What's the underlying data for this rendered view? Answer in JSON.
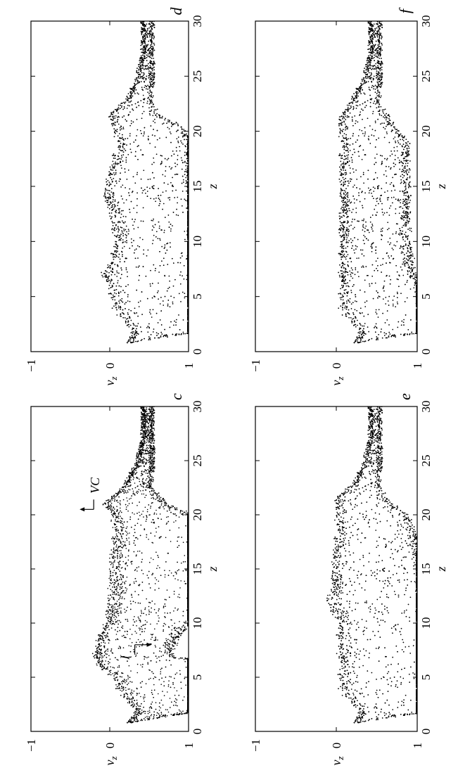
{
  "chart_data": [
    {
      "type": "scatter",
      "panel_label": "c",
      "xlabel": "z",
      "ylabel": "v_z",
      "xlim": [
        0,
        30
      ],
      "ylim": [
        -1,
        1
      ],
      "x_ticks": [
        "0",
        "5",
        "10",
        "15",
        "20",
        "25",
        "30"
      ],
      "y_ticks": [
        "−1",
        "0",
        "1"
      ],
      "profile": [
        [
          0.8,
          0.25,
          0.0
        ],
        [
          2,
          0.8,
          0.45
        ],
        [
          3.5,
          0.92,
          0.8
        ],
        [
          5,
          0.87,
          0.82
        ],
        [
          6,
          0.65,
          0.8
        ],
        [
          7,
          0.3,
          0.5
        ],
        [
          8.5,
          0.35,
          0.5
        ],
        [
          10,
          0.5,
          0.55
        ],
        [
          12,
          0.82,
          0.82
        ],
        [
          14,
          0.92,
          0.92
        ],
        [
          16,
          0.92,
          0.9
        ],
        [
          18,
          0.85,
          0.8
        ],
        [
          20,
          0.55,
          0.52
        ],
        [
          21,
          0.32,
          0.4
        ],
        [
          22.5,
          0.35,
          0.18
        ],
        [
          25,
          0.45,
          0.1
        ],
        [
          27,
          0.48,
          0.06
        ],
        [
          30,
          0.48,
          0.06
        ]
      ],
      "annotations": [
        {
          "text": "I",
          "z": 8.0,
          "v": 0.55
        },
        {
          "text": "VC",
          "z": 20.5,
          "v": -0.4
        }
      ]
    },
    {
      "type": "scatter",
      "panel_label": "d",
      "xlabel": "z",
      "ylabel": "v_z",
      "xlim": [
        0,
        30
      ],
      "ylim": [
        -1,
        1
      ],
      "x_ticks": [
        "0",
        "5",
        "10",
        "15",
        "20",
        "25",
        "30"
      ],
      "y_ticks": [
        "−1",
        "0",
        "1"
      ],
      "profile": [
        [
          0.8,
          0.25,
          0.0
        ],
        [
          2,
          0.8,
          0.5
        ],
        [
          3.5,
          0.92,
          0.85
        ],
        [
          5.5,
          0.85,
          0.85
        ],
        [
          7,
          0.55,
          0.65
        ],
        [
          8.5,
          0.68,
          0.65
        ],
        [
          10.5,
          0.86,
          0.8
        ],
        [
          12.5,
          0.82,
          0.8
        ],
        [
          13.5,
          0.55,
          0.62
        ],
        [
          15,
          0.5,
          0.55
        ],
        [
          17,
          0.55,
          0.52
        ],
        [
          19,
          0.58,
          0.48
        ],
        [
          20.5,
          0.48,
          0.45
        ],
        [
          21.5,
          0.3,
          0.3
        ],
        [
          23,
          0.38,
          0.15
        ],
        [
          25,
          0.45,
          0.1
        ],
        [
          27,
          0.48,
          0.06
        ],
        [
          30,
          0.48,
          0.06
        ]
      ]
    },
    {
      "type": "scatter",
      "panel_label": "e",
      "xlabel": "z",
      "ylabel": "v_z",
      "xlim": [
        0,
        30
      ],
      "ylim": [
        -1,
        1
      ],
      "x_ticks": [
        "0",
        "5",
        "10",
        "15",
        "20",
        "25",
        "30"
      ],
      "y_ticks": [
        "−1",
        "0",
        "1"
      ],
      "profile": [
        [
          0.8,
          0.25,
          0.0
        ],
        [
          2,
          0.8,
          0.5
        ],
        [
          3.5,
          0.9,
          0.85
        ],
        [
          6,
          0.87,
          0.83
        ],
        [
          8,
          0.82,
          0.8
        ],
        [
          10,
          0.8,
          0.78
        ],
        [
          12,
          0.62,
          0.72
        ],
        [
          14,
          0.55,
          0.6
        ],
        [
          16,
          0.52,
          0.55
        ],
        [
          18,
          0.5,
          0.5
        ],
        [
          20,
          0.45,
          0.45
        ],
        [
          21.5,
          0.3,
          0.3
        ],
        [
          23,
          0.38,
          0.15
        ],
        [
          25,
          0.45,
          0.1
        ],
        [
          27,
          0.48,
          0.06
        ],
        [
          30,
          0.48,
          0.06
        ]
      ]
    },
    {
      "type": "scatter",
      "panel_label": "f",
      "xlabel": "z",
      "ylabel": "v_z",
      "xlim": [
        0,
        30
      ],
      "ylim": [
        -1,
        1
      ],
      "x_ticks": [
        "0",
        "5",
        "10",
        "15",
        "20",
        "25",
        "30"
      ],
      "y_ticks": [
        "−1",
        "0",
        "1"
      ],
      "profile": [
        [
          0.8,
          0.25,
          0.0
        ],
        [
          2,
          0.8,
          0.5
        ],
        [
          3.5,
          0.9,
          0.85
        ],
        [
          5,
          0.8,
          0.75
        ],
        [
          6,
          0.55,
          0.5
        ],
        [
          8,
          0.5,
          0.45
        ],
        [
          12,
          0.48,
          0.42
        ],
        [
          16,
          0.48,
          0.42
        ],
        [
          19,
          0.48,
          0.42
        ],
        [
          21,
          0.35,
          0.32
        ],
        [
          22.5,
          0.35,
          0.18
        ],
        [
          25,
          0.45,
          0.1
        ],
        [
          27,
          0.48,
          0.06
        ],
        [
          30,
          0.48,
          0.06
        ]
      ]
    }
  ]
}
